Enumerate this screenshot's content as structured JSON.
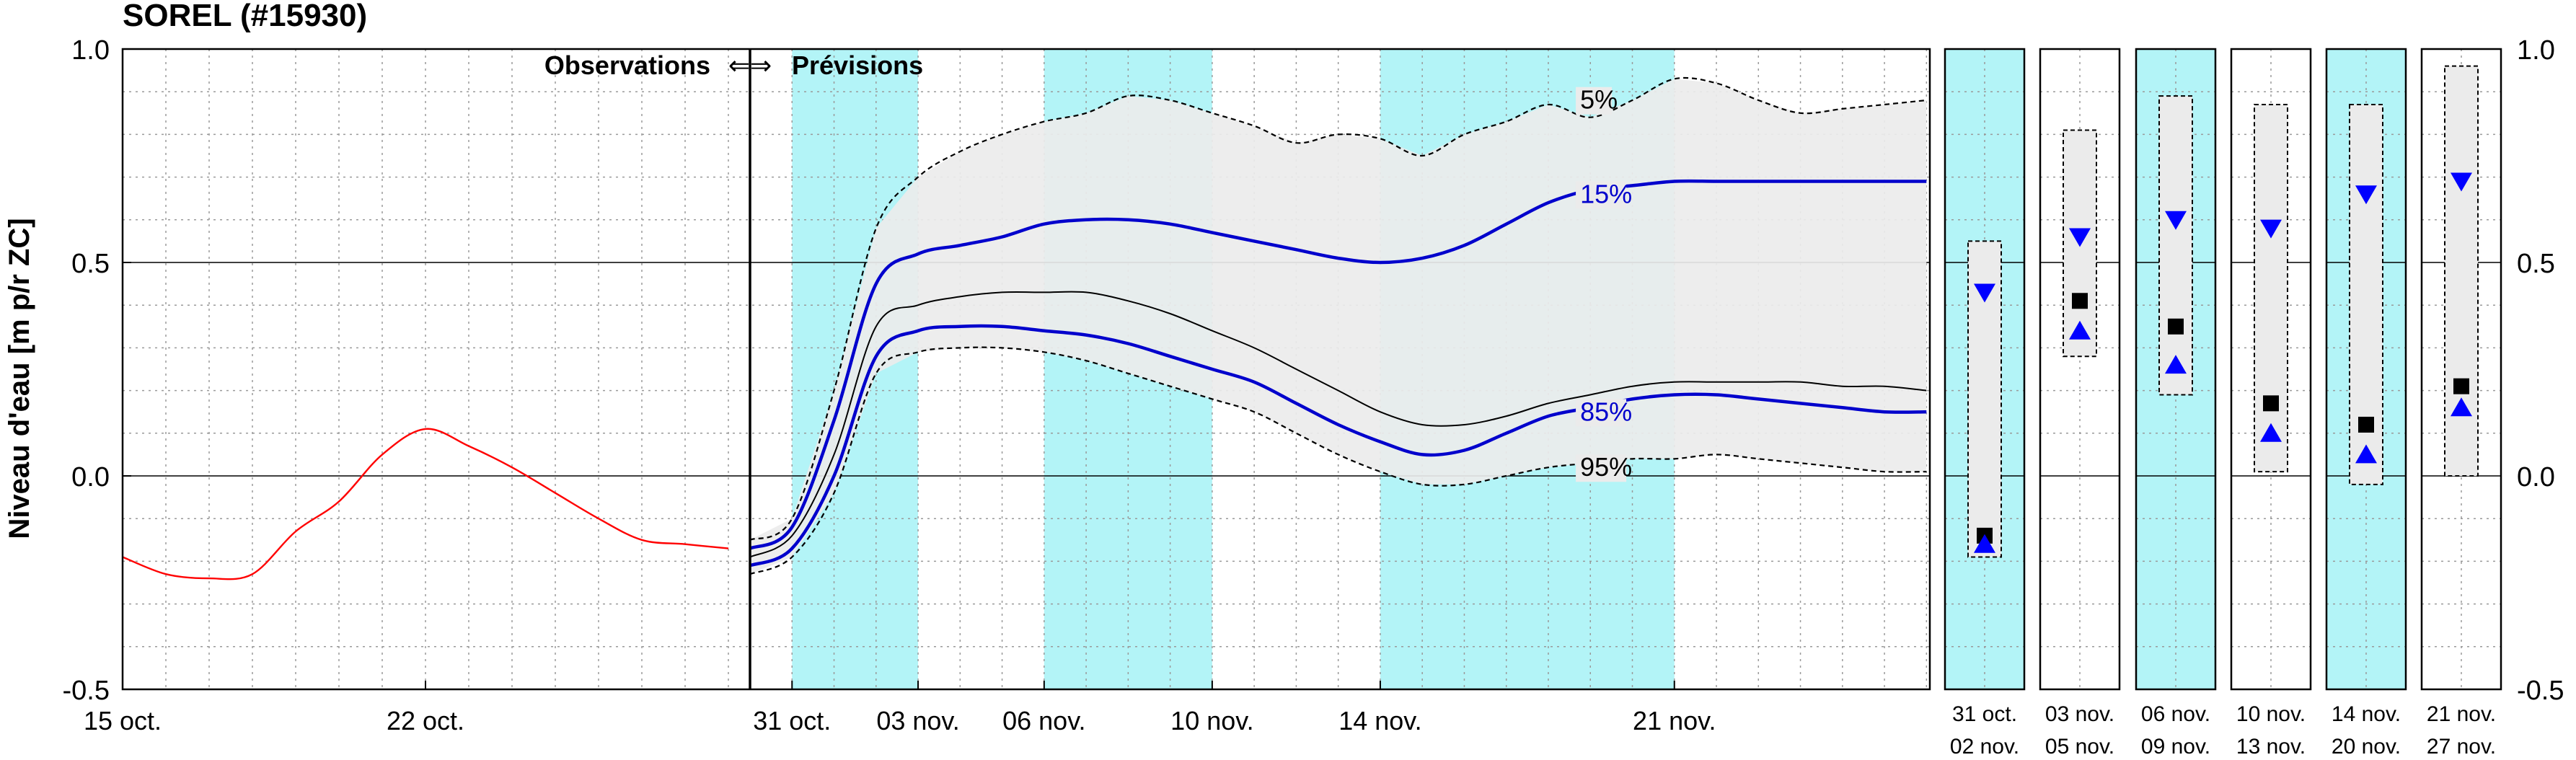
{
  "chart_data": {
    "type": "line",
    "title": "SOREL (#15930)",
    "ylabel": "Niveau d'eau [m p/r ZC]",
    "ylim": [
      -0.5,
      1.0
    ],
    "yticks": [
      "1.0",
      "0.5",
      "0.0",
      "-0.5"
    ],
    "grid": true,
    "obs_label": "Observations",
    "prev_label": "Prévisions",
    "arrow_glyph": "⇐⇒",
    "colors": {
      "observation": "#ff0000",
      "percentile": "#0000cc",
      "median": "#000000",
      "band_fill": "#ebebeb",
      "shade": "#b3f4f7",
      "marker_high": "#0000ff",
      "marker_median": "#000000"
    },
    "observations": {
      "x_ticks": [
        "15 oct.",
        "22 oct."
      ],
      "series": [
        {
          "x": [
            "15 oct.",
            "16 oct.",
            "17 oct.",
            "18 oct.",
            "19 oct.",
            "20 oct.",
            "21 oct.",
            "22 oct.",
            "23 oct.",
            "24 oct.",
            "25 oct.",
            "26 oct.",
            "27 oct.",
            "28 oct.",
            "29 oct."
          ],
          "values": [
            -0.19,
            -0.23,
            -0.24,
            -0.23,
            -0.13,
            -0.06,
            0.05,
            0.11,
            0.07,
            0.02,
            -0.04,
            -0.1,
            -0.15,
            -0.16,
            -0.17
          ]
        }
      ]
    },
    "forecast": {
      "x_ticks": [
        "31 oct.",
        "03 nov.",
        "06 nov.",
        "10 nov.",
        "14 nov.",
        "21 nov."
      ],
      "shaded_periods": [
        [
          "31 oct.",
          "03 nov."
        ],
        [
          "06 nov.",
          "10 nov."
        ],
        [
          "14 nov.",
          "21 nov."
        ]
      ],
      "x": [
        "30 oct.",
        "31 oct.",
        "01 nov.",
        "02 nov.",
        "03 nov.",
        "04 nov.",
        "05 nov.",
        "06 nov.",
        "07 nov.",
        "08 nov.",
        "09 nov.",
        "10 nov.",
        "11 nov.",
        "12 nov.",
        "13 nov.",
        "14 nov.",
        "15 nov.",
        "16 nov.",
        "17 nov.",
        "18 nov.",
        "19 nov.",
        "20 nov.",
        "21 nov.",
        "22 nov.",
        "23 nov.",
        "24 nov.",
        "25 nov.",
        "26 nov.",
        "27 nov."
      ],
      "series": [
        {
          "name": "5%",
          "values": [
            -0.15,
            -0.1,
            0.2,
            0.58,
            0.7,
            0.76,
            0.8,
            0.83,
            0.85,
            0.89,
            0.88,
            0.85,
            0.82,
            0.78,
            0.8,
            0.79,
            0.75,
            0.8,
            0.83,
            0.87,
            0.84,
            0.88,
            0.93,
            0.92,
            0.88,
            0.85,
            0.86,
            0.87,
            0.88
          ]
        },
        {
          "name": "15%",
          "values": [
            -0.17,
            -0.12,
            0.13,
            0.45,
            0.52,
            0.54,
            0.56,
            0.59,
            0.6,
            0.6,
            0.59,
            0.57,
            0.55,
            0.53,
            0.51,
            0.5,
            0.51,
            0.54,
            0.59,
            0.64,
            0.67,
            0.68,
            0.69,
            0.69,
            0.69,
            0.69,
            0.69,
            0.69,
            0.69
          ]
        },
        {
          "name": "50%",
          "values": [
            -0.19,
            -0.14,
            0.05,
            0.35,
            0.4,
            0.42,
            0.43,
            0.43,
            0.43,
            0.41,
            0.38,
            0.34,
            0.3,
            0.25,
            0.2,
            0.15,
            0.12,
            0.12,
            0.14,
            0.17,
            0.19,
            0.21,
            0.22,
            0.22,
            0.22,
            0.22,
            0.21,
            0.21,
            0.2
          ]
        },
        {
          "name": "85%",
          "values": [
            -0.21,
            -0.17,
            0.0,
            0.28,
            0.34,
            0.35,
            0.35,
            0.34,
            0.33,
            0.31,
            0.28,
            0.25,
            0.22,
            0.17,
            0.12,
            0.08,
            0.05,
            0.06,
            0.1,
            0.14,
            0.16,
            0.18,
            0.19,
            0.19,
            0.18,
            0.17,
            0.16,
            0.15,
            0.15
          ]
        },
        {
          "name": "95%",
          "values": [
            -0.23,
            -0.19,
            -0.04,
            0.24,
            0.29,
            0.3,
            0.3,
            0.29,
            0.27,
            0.24,
            0.21,
            0.18,
            0.15,
            0.1,
            0.05,
            0.01,
            -0.02,
            -0.02,
            0.0,
            0.02,
            0.03,
            0.04,
            0.04,
            0.05,
            0.04,
            0.03,
            0.02,
            0.01,
            0.01
          ]
        }
      ]
    },
    "period_summaries": [
      {
        "label": [
          "31 oct.",
          "02 nov."
        ],
        "shaded": true,
        "range": [
          -0.19,
          0.55
        ],
        "high": 0.43,
        "median": -0.14,
        "low": -0.16
      },
      {
        "label": [
          "03 nov.",
          "05 nov."
        ],
        "shaded": false,
        "range": [
          0.28,
          0.81
        ],
        "high": 0.56,
        "median": 0.41,
        "low": 0.34
      },
      {
        "label": [
          "06 nov.",
          "09 nov."
        ],
        "shaded": true,
        "range": [
          0.19,
          0.89
        ],
        "high": 0.6,
        "median": 0.35,
        "low": 0.26
      },
      {
        "label": [
          "10 nov.",
          "13 nov."
        ],
        "shaded": false,
        "range": [
          0.01,
          0.87
        ],
        "high": 0.58,
        "median": 0.17,
        "low": 0.1
      },
      {
        "label": [
          "14 nov.",
          "20 nov."
        ],
        "shaded": true,
        "range": [
          -0.02,
          0.87
        ],
        "high": 0.66,
        "median": 0.12,
        "low": 0.05
      },
      {
        "label": [
          "21 nov.",
          "27 nov."
        ],
        "shaded": false,
        "range": [
          0.0,
          0.96
        ],
        "high": 0.69,
        "median": 0.21,
        "low": 0.16
      }
    ]
  }
}
